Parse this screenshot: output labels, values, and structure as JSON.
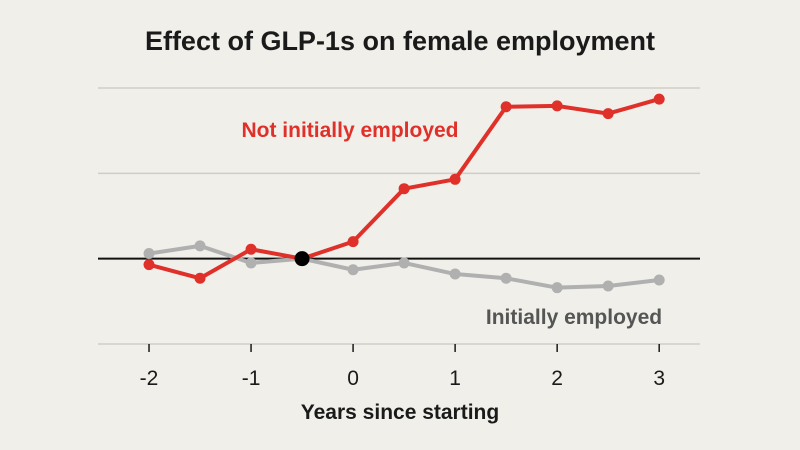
{
  "chart_data": {
    "type": "line",
    "title": "Effect of GLP-1s on female employment",
    "xlabel": "Years since starting",
    "ylabel": "",
    "xlim": [
      -2.5,
      3.4
    ],
    "ylim": [
      -1,
      2
    ],
    "x_ticks": [
      -2,
      -1,
      0,
      1,
      2,
      3
    ],
    "x_tick_labels": [
      "-2",
      "-1",
      "0",
      "1",
      "2",
      "3"
    ],
    "gridlines_y": [
      -1,
      1,
      2
    ],
    "zero_line": 0,
    "reference_point": {
      "x": -0.5,
      "y": 0,
      "color": "#000000"
    },
    "series": [
      {
        "name": "Not initially employed",
        "color": "#e0302a",
        "x": [
          -2,
          -1.5,
          -1,
          -0.5,
          0,
          0.5,
          1,
          1.5,
          2,
          2.5,
          3
        ],
        "y": [
          -0.07,
          -0.23,
          0.11,
          0,
          0.2,
          0.82,
          0.93,
          1.78,
          1.79,
          1.7,
          1.87
        ]
      },
      {
        "name": "Initially employed",
        "color": "#b0b0b0",
        "x": [
          -2,
          -1.5,
          -1,
          -0.5,
          0,
          0.5,
          1,
          1.5,
          2,
          2.5,
          3
        ],
        "y": [
          0.06,
          0.15,
          -0.05,
          0,
          -0.13,
          -0.05,
          -0.18,
          -0.23,
          -0.34,
          -0.32,
          -0.25
        ]
      }
    ]
  }
}
